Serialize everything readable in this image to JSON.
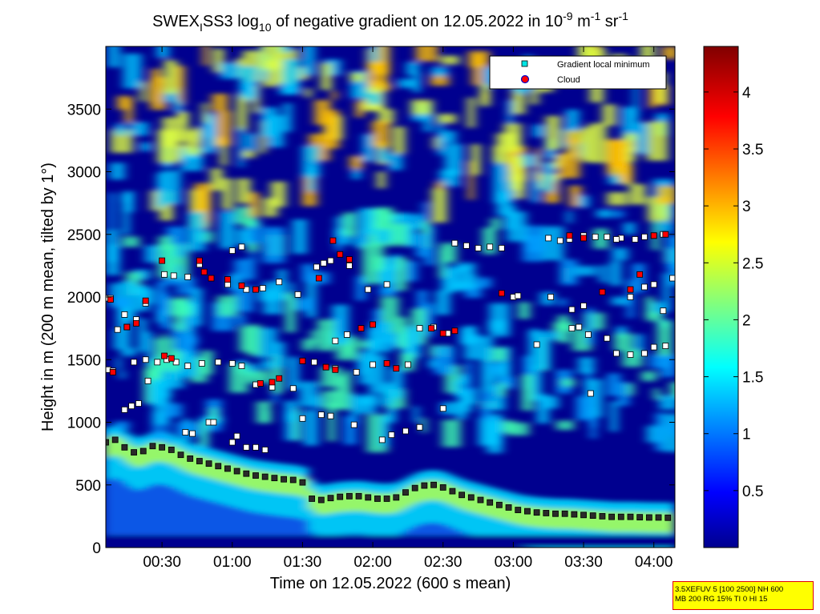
{
  "chart_data": {
    "type": "heatmap",
    "title_parts": {
      "pre": "SWEX",
      "sub1": "I",
      "mid": "SS3 log",
      "sub2": "10",
      "post": " of negative gradient on 12.05.2022 in 10",
      "sup1": "-9",
      "unit1": " m",
      "sup2": "-1",
      "unit2": " sr",
      "sup3": "-1"
    },
    "xlabel": "Time on 12.05.2022 (600 s mean)",
    "ylabel": "Height in m (200 m mean, tilted by 1°)",
    "xlim_minutes": [
      6,
      249
    ],
    "ylim": [
      0,
      4000
    ],
    "x_ticks": [
      "00:30",
      "01:00",
      "01:30",
      "02:00",
      "02:30",
      "03:00",
      "03:30",
      "04:00"
    ],
    "y_ticks": [
      "0",
      "500",
      "1000",
      "1500",
      "2000",
      "2500",
      "3000",
      "3500"
    ],
    "colorbar": {
      "range": [
        0,
        4.4
      ],
      "ticks": [
        "0.5",
        "1",
        "1.5",
        "2",
        "2.5",
        "3",
        "3.5",
        "4"
      ],
      "colormap": "jet"
    },
    "legend": {
      "position": "top-right",
      "entries": [
        "Gradient local minimum",
        "Cloud"
      ],
      "minimum_color": "#00e5e5",
      "cloud_color": "#ff0000"
    },
    "series": [
      {
        "name": "Gradient local minimum",
        "description_of_bands": "lowest layer (boundary layer top)",
        "points": [
          [
            6,
            840
          ],
          [
            10,
            860
          ],
          [
            14,
            800
          ],
          [
            18,
            760
          ],
          [
            22,
            770
          ],
          [
            26,
            810
          ],
          [
            30,
            800
          ],
          [
            34,
            780
          ],
          [
            38,
            740
          ],
          [
            42,
            710
          ],
          [
            46,
            690
          ],
          [
            50,
            670
          ],
          [
            54,
            650
          ],
          [
            58,
            630
          ],
          [
            62,
            610
          ],
          [
            66,
            590
          ],
          [
            70,
            575
          ],
          [
            74,
            565
          ],
          [
            78,
            555
          ],
          [
            82,
            545
          ],
          [
            86,
            540
          ],
          [
            90,
            520
          ],
          [
            94,
            390
          ],
          [
            98,
            380
          ],
          [
            102,
            395
          ],
          [
            106,
            405
          ],
          [
            110,
            410
          ],
          [
            114,
            410
          ],
          [
            118,
            400
          ],
          [
            122,
            390
          ],
          [
            126,
            390
          ],
          [
            130,
            400
          ],
          [
            134,
            440
          ],
          [
            138,
            475
          ],
          [
            142,
            495
          ],
          [
            146,
            500
          ],
          [
            150,
            480
          ],
          [
            154,
            450
          ],
          [
            158,
            420
          ],
          [
            162,
            400
          ],
          [
            166,
            380
          ],
          [
            170,
            360
          ],
          [
            174,
            340
          ],
          [
            178,
            320
          ],
          [
            182,
            300
          ],
          [
            186,
            290
          ],
          [
            190,
            280
          ],
          [
            194,
            275
          ],
          [
            198,
            270
          ],
          [
            202,
            270
          ],
          [
            206,
            265
          ],
          [
            210,
            260
          ],
          [
            214,
            255
          ],
          [
            218,
            250
          ],
          [
            222,
            245
          ],
          [
            226,
            245
          ],
          [
            230,
            245
          ],
          [
            234,
            242
          ],
          [
            238,
            240
          ],
          [
            242,
            240
          ],
          [
            246,
            238
          ]
        ]
      },
      {
        "name": "Gradient local minimum",
        "description_of_bands": "scattered upper minima",
        "points": [
          [
            7,
            1420
          ],
          [
            9,
            1410
          ],
          [
            14,
            1100
          ],
          [
            17,
            1130
          ],
          [
            20,
            1150
          ],
          [
            24,
            1330
          ],
          [
            18,
            1480
          ],
          [
            23,
            1500
          ],
          [
            28,
            1480
          ],
          [
            32,
            1500
          ],
          [
            36,
            1480
          ],
          [
            41,
            1450
          ],
          [
            47,
            1470
          ],
          [
            54,
            1480
          ],
          [
            60,
            1470
          ],
          [
            64,
            1450
          ],
          [
            70,
            1300
          ],
          [
            77,
            1280
          ],
          [
            86,
            1270
          ],
          [
            90,
            1490
          ],
          [
            95,
            1480
          ],
          [
            100,
            1440
          ],
          [
            104,
            1430
          ],
          [
            113,
            1400
          ],
          [
            120,
            1460
          ],
          [
            135,
            1460
          ],
          [
            11,
            1740
          ],
          [
            15,
            1760
          ],
          [
            19,
            1820
          ],
          [
            31,
            2180
          ],
          [
            35,
            2170
          ],
          [
            41,
            2160
          ],
          [
            46,
            2260
          ],
          [
            58,
            2100
          ],
          [
            66,
            2060
          ],
          [
            73,
            2070
          ],
          [
            80,
            2120
          ],
          [
            88,
            2020
          ],
          [
            96,
            2240
          ],
          [
            99,
            2270
          ],
          [
            102,
            2290
          ],
          [
            110,
            2250
          ],
          [
            14,
            1860
          ],
          [
            23,
            1950
          ],
          [
            6,
            1990
          ],
          [
            8,
            1990
          ],
          [
            40,
            920
          ],
          [
            50,
            1000
          ],
          [
            52,
            1000
          ],
          [
            43,
            910
          ],
          [
            60,
            840
          ],
          [
            62,
            890
          ],
          [
            66,
            800
          ],
          [
            70,
            800
          ],
          [
            74,
            780
          ],
          [
            90,
            1030
          ],
          [
            98,
            1060
          ],
          [
            102,
            1050
          ],
          [
            112,
            980
          ],
          [
            124,
            860
          ],
          [
            128,
            900
          ],
          [
            134,
            930
          ],
          [
            140,
            960
          ],
          [
            150,
            1110
          ],
          [
            155,
            2430
          ],
          [
            160,
            2410
          ],
          [
            165,
            2390
          ],
          [
            170,
            2400
          ],
          [
            175,
            2390
          ],
          [
            180,
            2000
          ],
          [
            182,
            2010
          ],
          [
            195,
            2470
          ],
          [
            200,
            2450
          ],
          [
            204,
            2460
          ],
          [
            210,
            2490
          ],
          [
            215,
            2480
          ],
          [
            220,
            2480
          ],
          [
            226,
            2470
          ],
          [
            232,
            2460
          ],
          [
            236,
            2480
          ],
          [
            240,
            2490
          ],
          [
            244,
            2500
          ],
          [
            190,
            1620
          ],
          [
            205,
            1750
          ],
          [
            208,
            1760
          ],
          [
            212,
            1700
          ],
          [
            220,
            1670
          ],
          [
            224,
            1550
          ],
          [
            230,
            1540
          ],
          [
            236,
            1550
          ],
          [
            240,
            1600
          ],
          [
            245,
            1610
          ],
          [
            230,
            2000
          ],
          [
            236,
            2080
          ],
          [
            240,
            2100
          ],
          [
            244,
            1890
          ],
          [
            248,
            2150
          ],
          [
            196,
            2000
          ],
          [
            205,
            1900
          ],
          [
            210,
            1930
          ],
          [
            224,
            2460
          ],
          [
            213,
            1230
          ],
          [
            60,
            2370
          ],
          [
            64,
            2400
          ],
          [
            104,
            1650
          ],
          [
            109,
            1700
          ],
          [
            118,
            2060
          ],
          [
            126,
            2100
          ],
          [
            140,
            1750
          ],
          [
            146,
            1760
          ],
          [
            152,
            1710
          ]
        ]
      },
      {
        "name": "Cloud",
        "points": [
          [
            9,
            1400
          ],
          [
            15,
            1760
          ],
          [
            19,
            1790
          ],
          [
            23,
            1970
          ],
          [
            31,
            1530
          ],
          [
            34,
            1510
          ],
          [
            46,
            2290
          ],
          [
            48,
            2200
          ],
          [
            51,
            2150
          ],
          [
            58,
            2140
          ],
          [
            64,
            2090
          ],
          [
            70,
            2060
          ],
          [
            72,
            1310
          ],
          [
            77,
            1320
          ],
          [
            80,
            1350
          ],
          [
            90,
            1490
          ],
          [
            100,
            1440
          ],
          [
            104,
            1420
          ],
          [
            103,
            2450
          ],
          [
            106,
            2340
          ],
          [
            110,
            2300
          ],
          [
            115,
            1750
          ],
          [
            120,
            1780
          ],
          [
            126,
            1470
          ],
          [
            130,
            1430
          ],
          [
            145,
            1750
          ],
          [
            150,
            1710
          ],
          [
            155,
            1730
          ],
          [
            175,
            2030
          ],
          [
            204,
            2490
          ],
          [
            210,
            2470
          ],
          [
            218,
            2040
          ],
          [
            230,
            2060
          ],
          [
            234,
            2180
          ],
          [
            240,
            2490
          ],
          [
            245,
            2500
          ],
          [
            8,
            1980
          ],
          [
            30,
            2290
          ],
          [
            97,
            2150
          ]
        ]
      }
    ]
  },
  "info_box": {
    "line1": "3.5XEFUV 5 [100 2500] NH 600",
    "line2": "MB 200 RG 15% TI 0 HI 15"
  }
}
